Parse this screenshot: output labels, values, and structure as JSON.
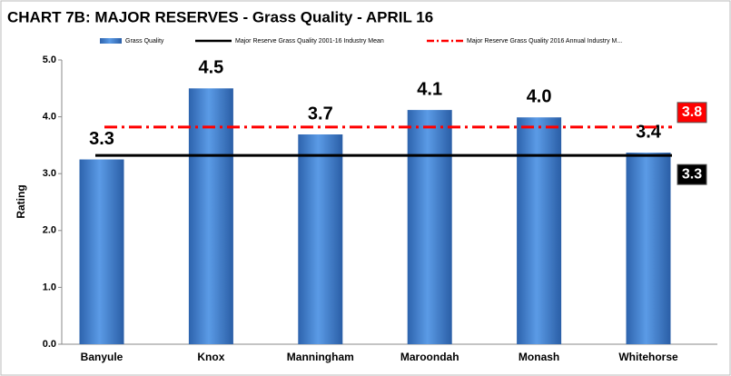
{
  "chart_data": {
    "type": "bar",
    "title": "CHART 7B:  MAJOR RESERVES - Grass Quality - APRIL 16",
    "y_label": "Rating",
    "categories": [
      "Banyule",
      "Knox",
      "Manningham",
      "Maroondah",
      "Monash",
      "Whitehorse"
    ],
    "series": [
      {
        "name": "Grass Quality",
        "color": "#3a78c9",
        "values": [
          3.25,
          4.5,
          3.69,
          4.12,
          3.99,
          3.37
        ],
        "value_labels": [
          "3.3",
          "4.5",
          "3.7",
          "4.1",
          "4.0",
          "3.4"
        ]
      }
    ],
    "reference_lines": [
      {
        "name": "Major Reserve Grass Quality 2001-16 Industry Mean",
        "value": 3.32,
        "label": "3.3",
        "color": "#000000",
        "style": "solid"
      },
      {
        "name": "Major Reserve Grass Quality 2016 Annual Industry M...",
        "value": 3.82,
        "label": "3.8",
        "color": "#ff0000",
        "style": "dashdot"
      }
    ],
    "ylim": [
      0,
      5
    ],
    "yticks": [
      {
        "value": 0,
        "label": "0.0"
      },
      {
        "value": 1,
        "label": "1.0"
      },
      {
        "value": 2,
        "label": "2.0"
      },
      {
        "value": 3,
        "label": "3.0"
      },
      {
        "value": 4,
        "label": "4.0"
      },
      {
        "value": 5,
        "label": "5.0"
      }
    ],
    "grid": false
  }
}
